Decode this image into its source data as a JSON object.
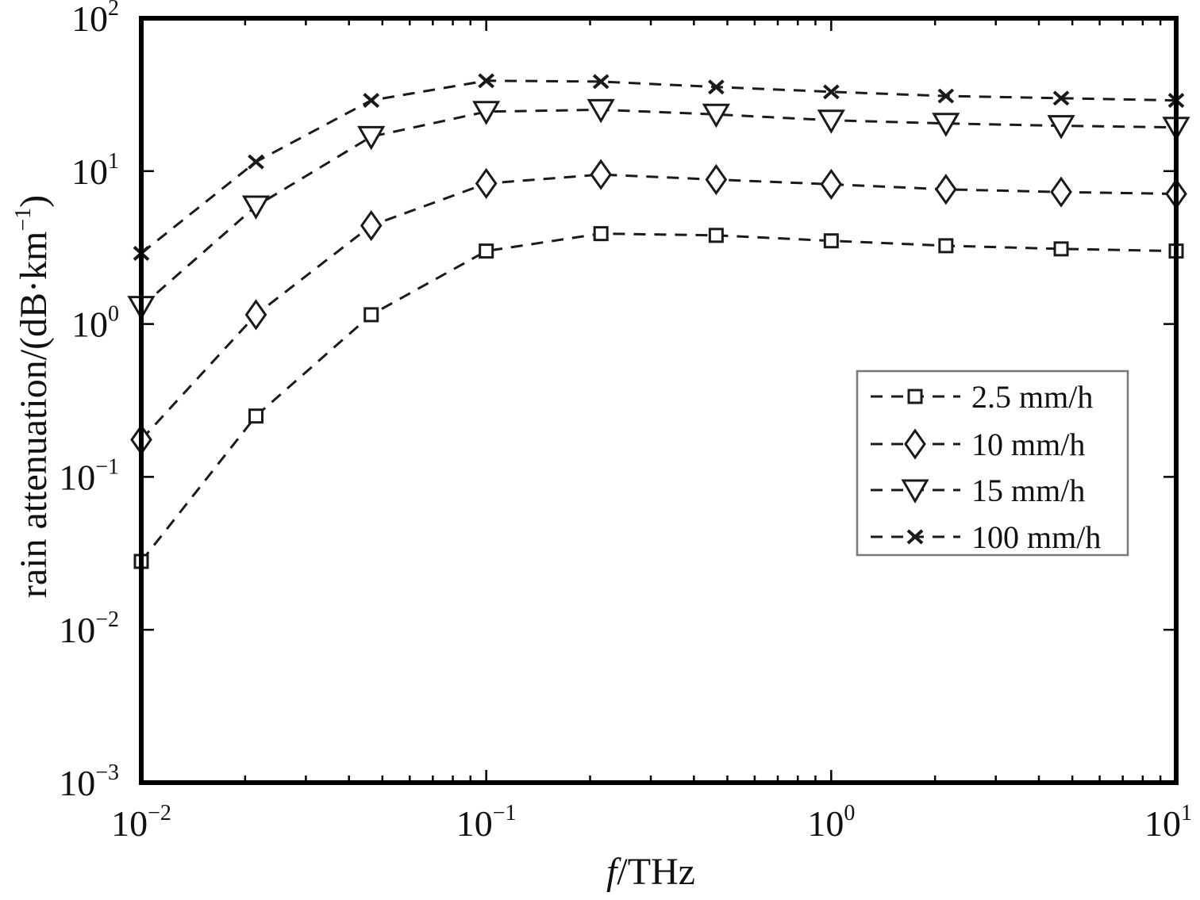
{
  "chart_data": {
    "type": "line",
    "xscale": "log",
    "yscale": "log",
    "xlim": [
      0.01,
      10
    ],
    "ylim": [
      0.001,
      100
    ],
    "xlabel": {
      "italic": "f",
      "rest": "/THz"
    },
    "ylabel": {
      "main": "rain attenuation/(dB·km",
      "sup": "−1",
      "close": ")"
    },
    "xticks": [
      {
        "value": 0.01,
        "base": "10",
        "exp": "−2"
      },
      {
        "value": 0.1,
        "base": "10",
        "exp": "−1"
      },
      {
        "value": 1,
        "base": "10",
        "exp": "0"
      },
      {
        "value": 10,
        "base": "10",
        "exp": "1"
      }
    ],
    "yticks": [
      {
        "value": 0.001,
        "base": "10",
        "exp": "−3"
      },
      {
        "value": 0.01,
        "base": "10",
        "exp": "−2"
      },
      {
        "value": 0.1,
        "base": "10",
        "exp": "−1"
      },
      {
        "value": 1,
        "base": "10",
        "exp": "0"
      },
      {
        "value": 10,
        "base": "10",
        "exp": "1"
      },
      {
        "value": 100,
        "base": "10",
        "exp": "2"
      }
    ],
    "x": [
      0.01,
      0.0215,
      0.0464,
      0.1,
      0.215,
      0.464,
      1.0,
      2.15,
      4.64,
      10.0
    ],
    "series": [
      {
        "name": "2.5 mm/h",
        "marker": "square",
        "values": [
          0.028,
          0.25,
          1.15,
          3.0,
          3.9,
          3.8,
          3.5,
          3.25,
          3.1,
          3.0
        ]
      },
      {
        "name": "10 mm/h",
        "marker": "diamond",
        "values": [
          0.175,
          1.15,
          4.4,
          8.3,
          9.5,
          8.8,
          8.2,
          7.6,
          7.3,
          7.1
        ]
      },
      {
        "name": "15 mm/h",
        "marker": "triangle-down",
        "values": [
          1.3,
          5.9,
          16.8,
          24.5,
          25.2,
          23.5,
          21.5,
          20.5,
          19.8,
          19.3
        ]
      },
      {
        "name": "100 mm/h",
        "marker": "x",
        "values": [
          2.9,
          11.5,
          29.0,
          39.0,
          38.5,
          35.5,
          33.0,
          31.0,
          30.0,
          29.0
        ]
      }
    ],
    "grid": false,
    "legend": "center-right",
    "line_style": "dashed",
    "color": "#1a1a1a"
  }
}
